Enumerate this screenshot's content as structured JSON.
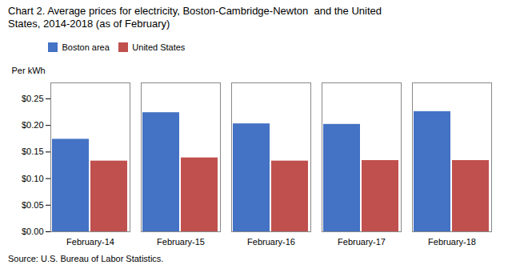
{
  "chart_data": {
    "type": "bar",
    "title": "Chart 2. Average prices for electricity, Boston-Cambridge-Newton  and the United\nStates, 2014-2018 (as of February)",
    "ylabel": "Per kWh",
    "source": "Source: U.S. Bureau of Labor Statistics.",
    "categories": [
      "February-14",
      "February-15",
      "February-16",
      "February-17",
      "February-18"
    ],
    "series": [
      {
        "name": "Boston area",
        "color": "#4472C4",
        "values": [
          0.174,
          0.224,
          0.203,
          0.202,
          0.226
        ]
      },
      {
        "name": "United States",
        "color": "#C0504D",
        "values": [
          0.133,
          0.139,
          0.133,
          0.134,
          0.134
        ]
      }
    ],
    "ylim": [
      0.0,
      0.28
    ],
    "yticks": [
      {
        "value": 0.0,
        "label": "$0.00"
      },
      {
        "value": 0.05,
        "label": "$0.05"
      },
      {
        "value": 0.1,
        "label": "$0.10"
      },
      {
        "value": 0.15,
        "label": "$0.15"
      },
      {
        "value": 0.2,
        "label": "$0.20"
      },
      {
        "value": 0.25,
        "label": "$0.25"
      }
    ],
    "legend": "upper left",
    "grid": false
  }
}
